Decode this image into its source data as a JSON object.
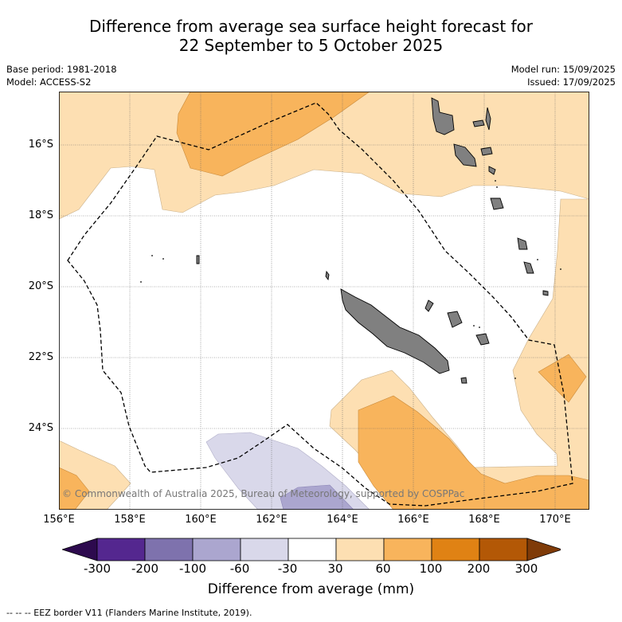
{
  "title": {
    "line1": "Difference from average sea surface height forecast for",
    "line2": "22 September to 5 October 2025"
  },
  "meta": {
    "base_period": "Base period: 1981-2018",
    "model": "Model: ACCESS-S2",
    "model_run": "Model run: 15/09/2025",
    "issued": "Issued: 17/09/2025"
  },
  "axes": {
    "lat_labels": [
      "16°S",
      "18°S",
      "20°S",
      "22°S",
      "24°S"
    ],
    "lon_labels": [
      "156°E",
      "158°E",
      "160°E",
      "162°E",
      "164°E",
      "166°E",
      "168°E",
      "170°E"
    ]
  },
  "colorbar": {
    "ticks": [
      "-300",
      "-200",
      "-100",
      "-60",
      "-30",
      "30",
      "60",
      "100",
      "200",
      "300"
    ],
    "colors": [
      "#2d0a4e",
      "#54278f",
      "#7e72ad",
      "#aba6cf",
      "#d9d8ea",
      "#ffffff",
      "#fddfb2",
      "#f8b45c",
      "#e08214",
      "#b35806",
      "#7f3b08"
    ],
    "label": "Difference from average (mm)"
  },
  "copyright": "© Commonwealth of Australia 2025, Bureau of Meteorology, supported by COSPPac",
  "footnote": "--  --  -- EEZ border V11 (Flanders Marine Institute, 2019).",
  "style": {
    "land": "#808080",
    "light_orange": "#fddfb2",
    "mid_orange": "#f8b45c",
    "light_purple": "#d9d8ea",
    "mid_purple": "#aba6cf"
  }
}
